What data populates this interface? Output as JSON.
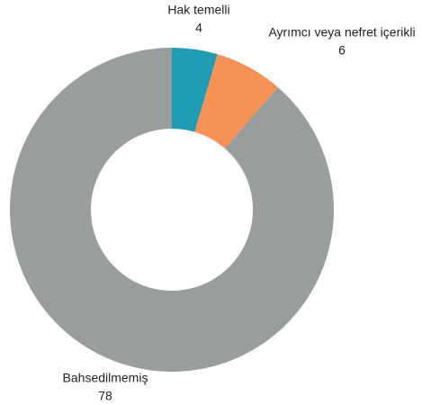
{
  "chart_data": {
    "type": "donut",
    "categories": [
      "Hak temelli",
      "Ayrımcı veya nefret içerikli",
      "Bahsedilmemiş"
    ],
    "values": [
      4,
      6,
      78
    ],
    "colors": [
      "#1f9bb4",
      "#f79257",
      "#9a9d9e"
    ]
  }
}
